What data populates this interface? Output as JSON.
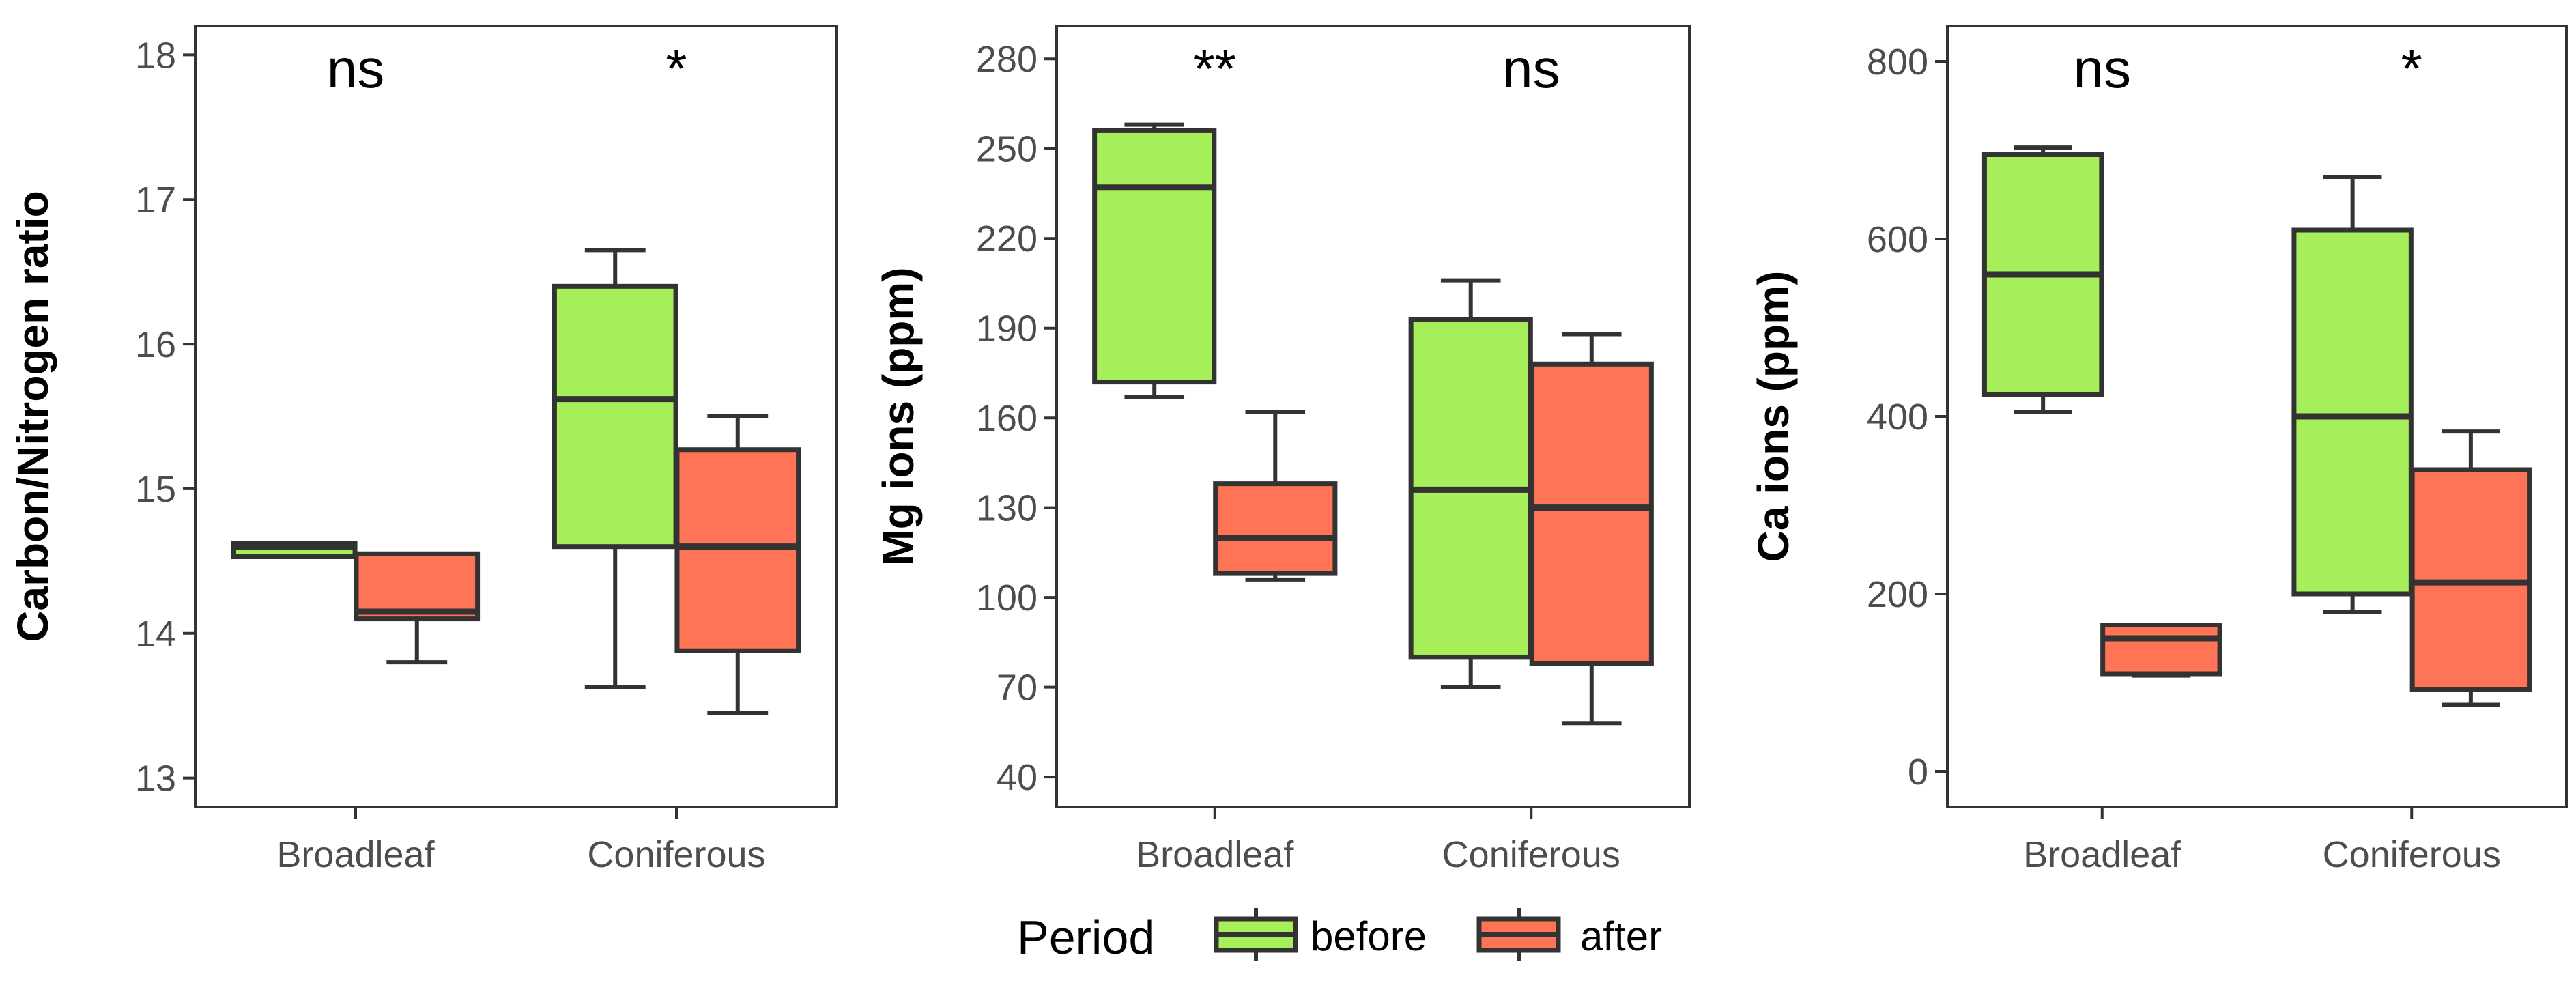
{
  "chart_data": [
    {
      "type": "box",
      "ylabel": "Carbon/Nitrogen ratio",
      "ylim": [
        12.8,
        18.2
      ],
      "yticks": [
        13,
        14,
        15,
        16,
        17,
        18
      ],
      "categories": [
        "Broadleaf",
        "Coniferous"
      ],
      "significance": [
        "ns",
        "*"
      ],
      "series": [
        {
          "name": "before",
          "color": "#a6ef5a",
          "boxes": [
            {
              "min": 14.53,
              "q1": 14.53,
              "median": 14.6,
              "q3": 14.62,
              "max": 14.62
            },
            {
              "min": 13.63,
              "q1": 14.6,
              "median": 15.62,
              "q3": 16.4,
              "max": 16.65
            }
          ]
        },
        {
          "name": "after",
          "color": "#ff7457",
          "boxes": [
            {
              "min": 13.8,
              "q1": 14.1,
              "median": 14.15,
              "q3": 14.55,
              "max": 14.55
            },
            {
              "min": 13.45,
              "q1": 13.88,
              "median": 14.6,
              "q3": 15.27,
              "max": 15.5
            }
          ]
        }
      ]
    },
    {
      "type": "box",
      "ylabel": "Mg ions (ppm)",
      "ylim": [
        30,
        291
      ],
      "yticks": [
        40,
        70,
        100,
        130,
        160,
        190,
        220,
        250,
        280
      ],
      "categories": [
        "Broadleaf",
        "Coniferous"
      ],
      "significance": [
        "**",
        "ns"
      ],
      "series": [
        {
          "name": "before",
          "color": "#a6ef5a",
          "boxes": [
            {
              "min": 167,
              "q1": 172,
              "median": 237,
              "q3": 256,
              "max": 258
            },
            {
              "min": 70,
              "q1": 80,
              "median": 136,
              "q3": 193,
              "max": 206
            }
          ]
        },
        {
          "name": "after",
          "color": "#ff7457",
          "boxes": [
            {
              "min": 106,
              "q1": 108,
              "median": 120,
              "q3": 138,
              "max": 162
            },
            {
              "min": 58,
              "q1": 78,
              "median": 130,
              "q3": 178,
              "max": 188
            }
          ]
        }
      ]
    },
    {
      "type": "box",
      "ylabel": "Ca ions (ppm)",
      "ylim": [
        -40,
        840
      ],
      "yticks": [
        0,
        200,
        400,
        600,
        800
      ],
      "categories": [
        "Broadleaf",
        "Coniferous"
      ],
      "significance": [
        "ns",
        "*"
      ],
      "series": [
        {
          "name": "before",
          "color": "#a6ef5a",
          "boxes": [
            {
              "min": 405,
              "q1": 425,
              "median": 560,
              "q3": 695,
              "max": 703
            },
            {
              "min": 180,
              "q1": 200,
              "median": 400,
              "q3": 610,
              "max": 670
            }
          ]
        },
        {
          "name": "after",
          "color": "#ff7457",
          "boxes": [
            {
              "min": 108,
              "q1": 110,
              "median": 150,
              "q3": 165,
              "max": 165
            },
            {
              "min": 75,
              "q1": 92,
              "median": 213,
              "q3": 340,
              "max": 383
            }
          ]
        }
      ]
    }
  ],
  "legend": {
    "title": "Period",
    "items": [
      {
        "label": "before",
        "color": "#a6ef5a"
      },
      {
        "label": "after",
        "color": "#ff7457"
      }
    ]
  }
}
